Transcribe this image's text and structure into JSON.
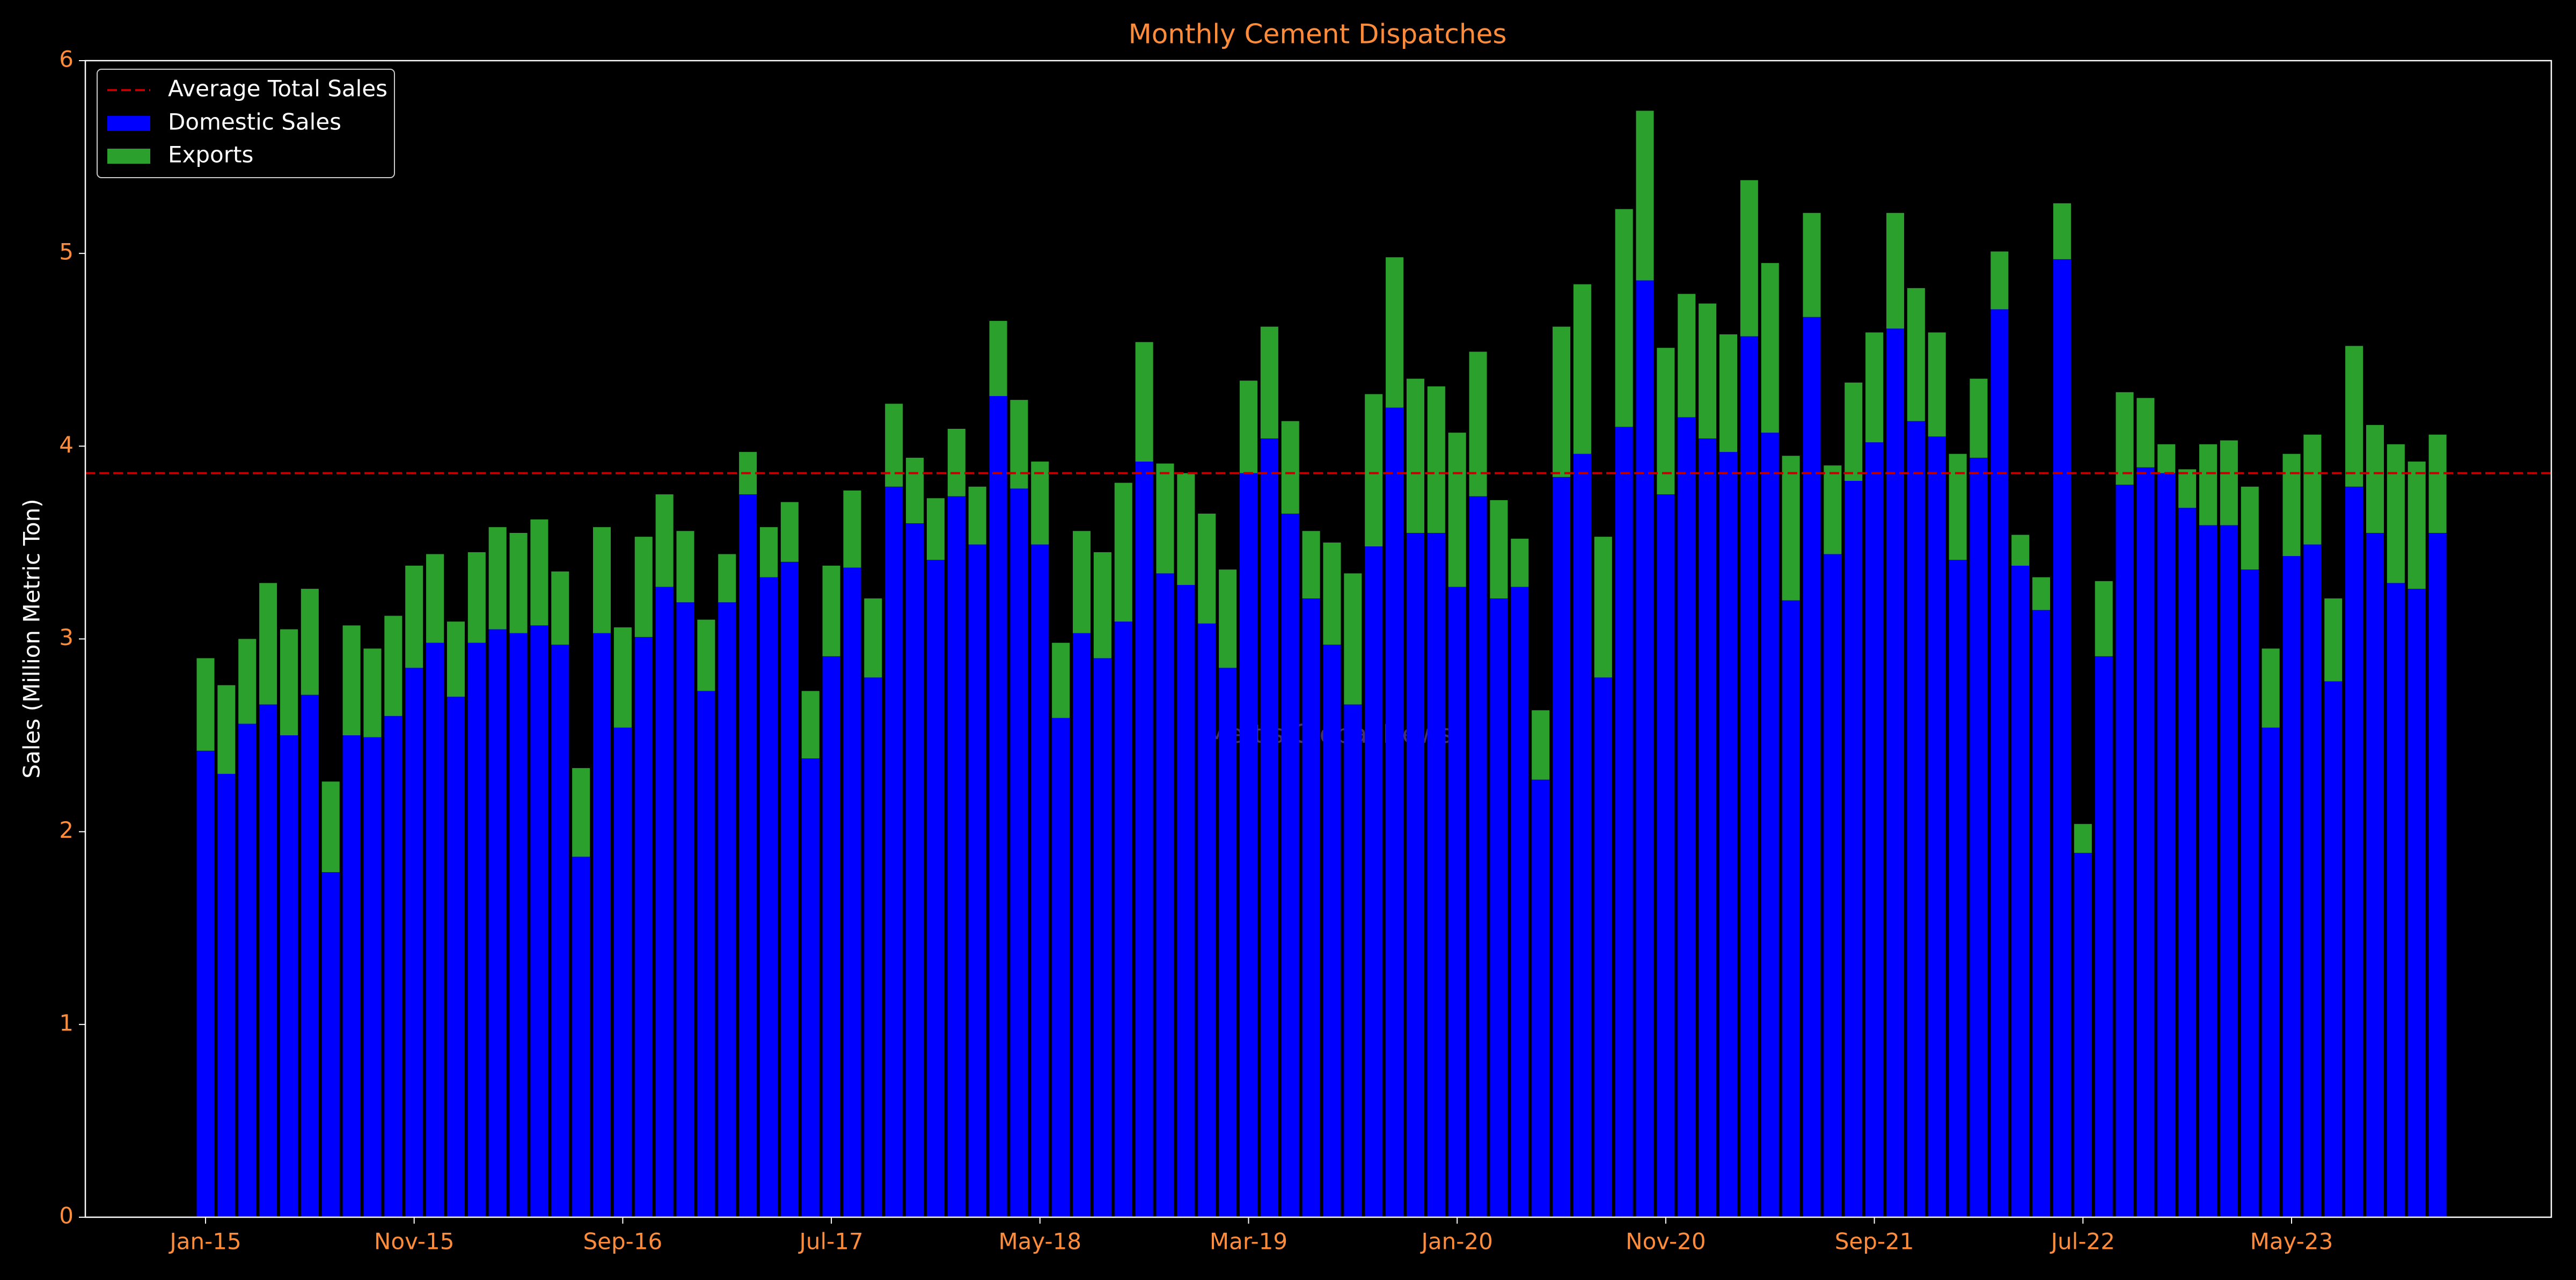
{
  "chart_data": {
    "type": "stacked_bar",
    "title": "Monthly Cement Dispatches",
    "y_label": "Sales (Million Metric Ton)",
    "watermark": "Mettis Global News",
    "categories": [
      "Jan-15",
      null,
      null,
      null,
      null,
      null,
      null,
      null,
      null,
      null,
      "Nov-15",
      null,
      null,
      null,
      null,
      null,
      null,
      null,
      null,
      null,
      "Sep-16",
      null,
      null,
      null,
      null,
      null,
      null,
      null,
      null,
      null,
      "Jul-17",
      null,
      null,
      null,
      null,
      null,
      null,
      null,
      null,
      null,
      "May-18",
      null,
      null,
      null,
      null,
      null,
      null,
      null,
      null,
      null,
      "Mar-19",
      null,
      null,
      null,
      null,
      null,
      null,
      null,
      null,
      null,
      "Jan-20",
      null,
      null,
      null,
      null,
      null,
      null,
      null,
      null,
      null,
      "Nov-20",
      null,
      null,
      null,
      null,
      null,
      null,
      null,
      null,
      null,
      "Sep-21",
      null,
      null,
      null,
      null,
      null,
      null,
      null,
      null,
      null,
      "Jul-22",
      null,
      null,
      null,
      null,
      null,
      null,
      null,
      null,
      null,
      "May-23",
      null,
      null,
      null,
      null,
      null,
      null,
      null
    ],
    "series": [
      {
        "name": "Domestic Sales",
        "color": "#0000ff",
        "values": [
          2.42,
          2.3,
          2.56,
          2.66,
          2.5,
          2.71,
          1.79,
          2.5,
          2.49,
          2.6,
          2.85,
          2.98,
          2.7,
          2.98,
          3.05,
          3.03,
          3.07,
          2.97,
          1.87,
          3.03,
          2.54,
          3.01,
          3.27,
          3.19,
          2.73,
          3.19,
          3.75,
          3.32,
          3.4,
          2.38,
          2.91,
          3.37,
          2.8,
          3.79,
          3.6,
          3.41,
          3.74,
          3.49,
          4.26,
          3.78,
          3.49,
          2.59,
          3.03,
          2.9,
          3.09,
          3.92,
          3.34,
          3.28,
          3.08,
          2.85,
          3.86,
          4.04,
          3.65,
          3.21,
          2.97,
          2.66,
          3.48,
          4.2,
          3.55,
          3.55,
          3.27,
          3.74,
          3.21,
          3.27,
          2.27,
          3.84,
          3.96,
          2.8,
          4.1,
          4.86,
          3.75,
          4.15,
          4.04,
          3.97,
          4.57,
          4.07,
          3.2,
          4.67,
          3.44,
          3.82,
          4.02,
          4.61,
          4.13,
          4.05,
          3.41,
          3.94,
          4.71,
          3.38,
          3.15,
          4.97,
          1.89,
          2.91,
          3.8,
          3.89,
          3.86,
          3.68,
          3.59,
          3.59,
          3.36,
          2.54,
          3.43,
          3.49,
          2.78,
          3.79,
          3.55,
          3.29,
          3.26,
          3.55
        ]
      },
      {
        "name": "Exports",
        "color": "#2ca02c",
        "values": [
          0.48,
          0.46,
          0.44,
          0.63,
          0.55,
          0.55,
          0.47,
          0.57,
          0.46,
          0.52,
          0.53,
          0.46,
          0.39,
          0.47,
          0.53,
          0.52,
          0.55,
          0.38,
          0.46,
          0.55,
          0.52,
          0.52,
          0.48,
          0.37,
          0.37,
          0.25,
          0.22,
          0.26,
          0.31,
          0.35,
          0.47,
          0.4,
          0.41,
          0.43,
          0.34,
          0.32,
          0.35,
          0.3,
          0.39,
          0.46,
          0.43,
          0.39,
          0.53,
          0.55,
          0.72,
          0.62,
          0.57,
          0.58,
          0.57,
          0.51,
          0.48,
          0.58,
          0.48,
          0.35,
          0.53,
          0.68,
          0.79,
          0.78,
          0.8,
          0.76,
          0.8,
          0.75,
          0.51,
          0.25,
          0.36,
          0.78,
          0.88,
          0.73,
          1.13,
          0.88,
          0.76,
          0.64,
          0.7,
          0.61,
          0.81,
          0.88,
          0.75,
          0.54,
          0.46,
          0.51,
          0.57,
          0.6,
          0.69,
          0.54,
          0.55,
          0.41,
          0.3,
          0.16,
          0.17,
          0.29,
          0.15,
          0.39,
          0.48,
          0.36,
          0.15,
          0.2,
          0.42,
          0.44,
          0.43,
          0.41,
          0.53,
          0.57,
          0.43,
          0.73,
          0.56,
          0.72,
          0.66,
          0.51
        ]
      }
    ],
    "reference_line": {
      "name": "Average Total Sales",
      "value": 3.86,
      "color": "#c00000"
    },
    "ylim": [
      0,
      6
    ],
    "yticks": [
      0,
      1,
      2,
      3,
      4,
      5,
      6
    ],
    "legend": "upper left",
    "grid": false
  }
}
